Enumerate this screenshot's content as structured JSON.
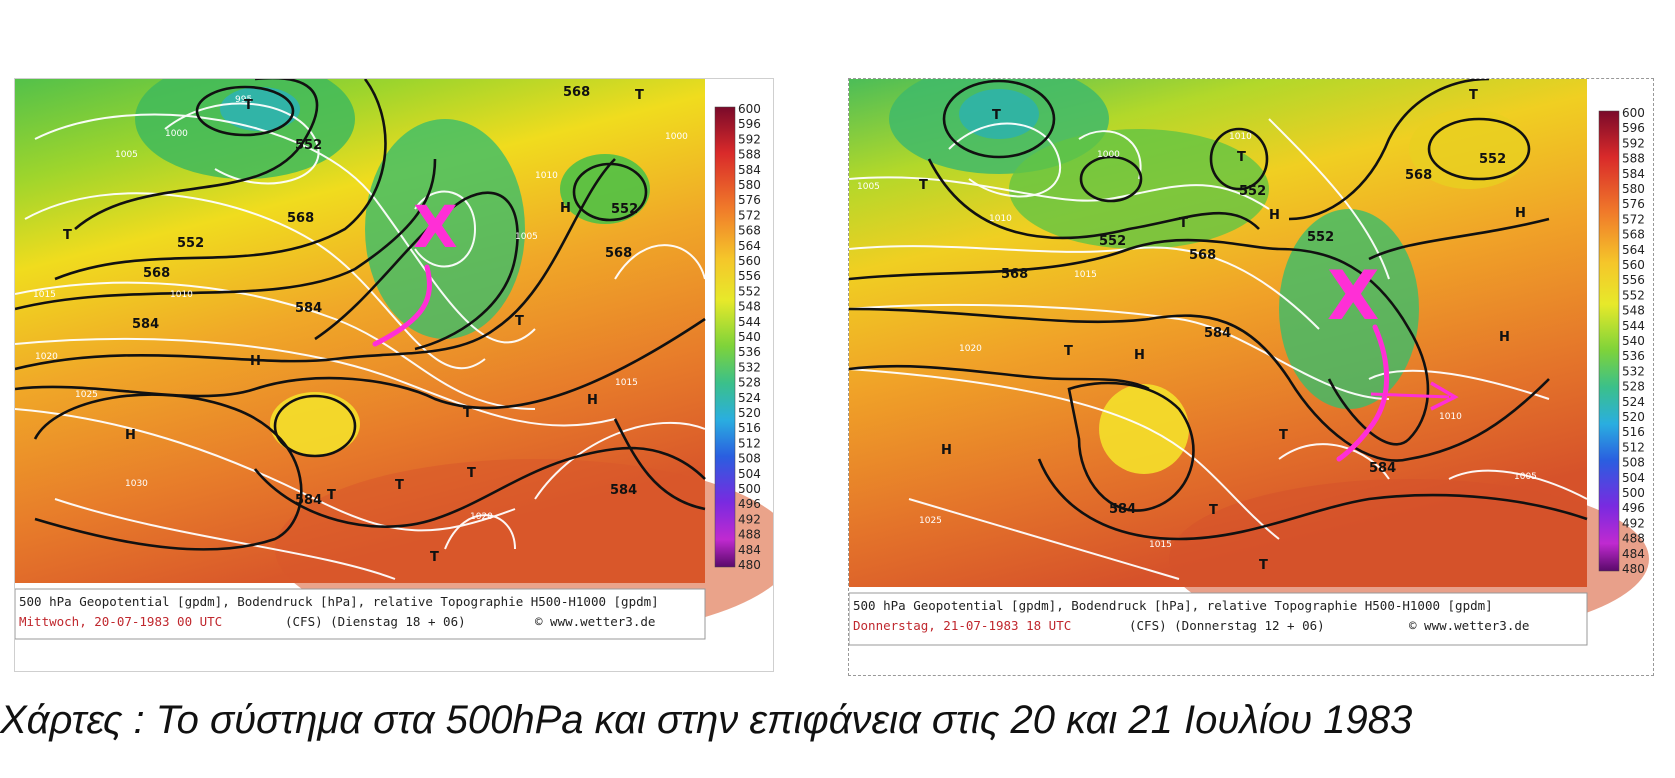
{
  "figure": {
    "caption": "Χάρτες : Το σύστημα στα 500hPa και στην επιφάνεια στις 20 και 21 Ιουλίου 1983"
  },
  "colors": {
    "magenta_marker": "#ff2fd6",
    "caption_date": "#c0282e",
    "contour": "#000000",
    "isobar": "#ffffff"
  },
  "colorbar_levels": [
    "600",
    "596",
    "592",
    "588",
    "584",
    "580",
    "576",
    "572",
    "568",
    "564",
    "560",
    "556",
    "552",
    "548",
    "544",
    "540",
    "536",
    "532",
    "528",
    "524",
    "520",
    "516",
    "512",
    "508",
    "504",
    "500",
    "496",
    "492",
    "488",
    "484",
    "480"
  ],
  "maps": [
    {
      "caption_line1": "500 hPa Geopotential [gpdm], Bodendruck [hPa], relative Topographie H500-H1000 [gpdm]",
      "caption_date": "Mittwoch, 20-07-1983  00 UTC",
      "caption_run": "(CFS)  (Dienstag 18 + 06)",
      "caption_source": "© www.wetter3.de",
      "marker": "X",
      "contour_labels": [
        "552",
        "552",
        "568",
        "568",
        "584",
        "584",
        "584",
        "584",
        "568",
        "552",
        "568"
      ],
      "pressure_labels": [
        "1000",
        "1005",
        "1010",
        "1015",
        "1020",
        "1025",
        "1030",
        "995",
        "1020",
        "1015",
        "1010",
        "1005",
        "1000"
      ],
      "symbols": [
        "T",
        "T",
        "T",
        "T",
        "H",
        "H",
        "H",
        "T",
        "T",
        "T",
        "T",
        "H",
        "T"
      ]
    },
    {
      "caption_line1": "500 hPa Geopotential [gpdm], Bodendruck [hPa], relative Topographie H500-H1000 [gpdm]",
      "caption_date": "Donnerstag, 21-07-1983  18 UTC",
      "caption_run": "(CFS)  (Donnerstag 12 + 06)",
      "caption_source": "© www.wetter3.de",
      "marker": "X",
      "contour_labels": [
        "552",
        "552",
        "568",
        "568",
        "584",
        "584",
        "552",
        "552",
        "568",
        "584"
      ],
      "pressure_labels": [
        "1005",
        "1010",
        "1015",
        "1020",
        "1025",
        "1000",
        "1010",
        "1015",
        "1005",
        "1010"
      ],
      "symbols": [
        "T",
        "T",
        "T",
        "T",
        "H",
        "H",
        "H",
        "T",
        "T",
        "T",
        "H",
        "H",
        "T",
        "T"
      ]
    }
  ]
}
